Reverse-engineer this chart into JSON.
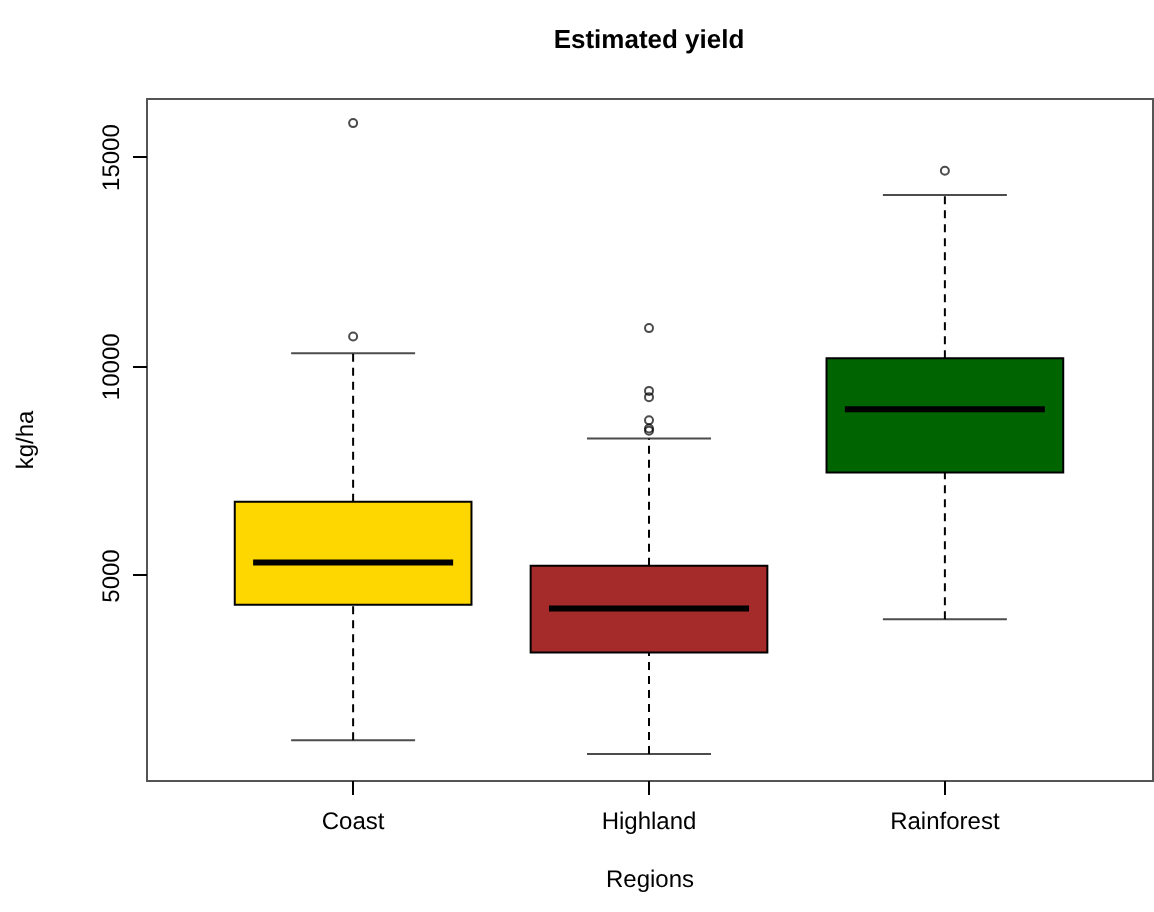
{
  "chart_data": {
    "type": "box",
    "title": "Estimated yield",
    "xlabel": "Regions",
    "ylabel": "kg/ha",
    "categories": [
      "Coast",
      "Highland",
      "Rainforest"
    ],
    "colors": [
      "#ffd700",
      "#a52a2a",
      "#006400"
    ],
    "boxes": [
      {
        "low": 1050,
        "q1": 4290,
        "median": 5300,
        "q3": 6750,
        "high": 10300,
        "outliers": [
          10700,
          15800
        ]
      },
      {
        "low": 720,
        "q1": 3150,
        "median": 4200,
        "q3": 5220,
        "high": 8260,
        "outliers": [
          8450,
          8500,
          8700,
          9250,
          9400,
          10900
        ]
      },
      {
        "low": 3940,
        "q1": 7450,
        "median": 8960,
        "q3": 10180,
        "high": 14080,
        "outliers": [
          14660
        ]
      }
    ],
    "ylim": [
      100,
      16400
    ],
    "yticks": [
      5000,
      10000,
      15000
    ]
  }
}
